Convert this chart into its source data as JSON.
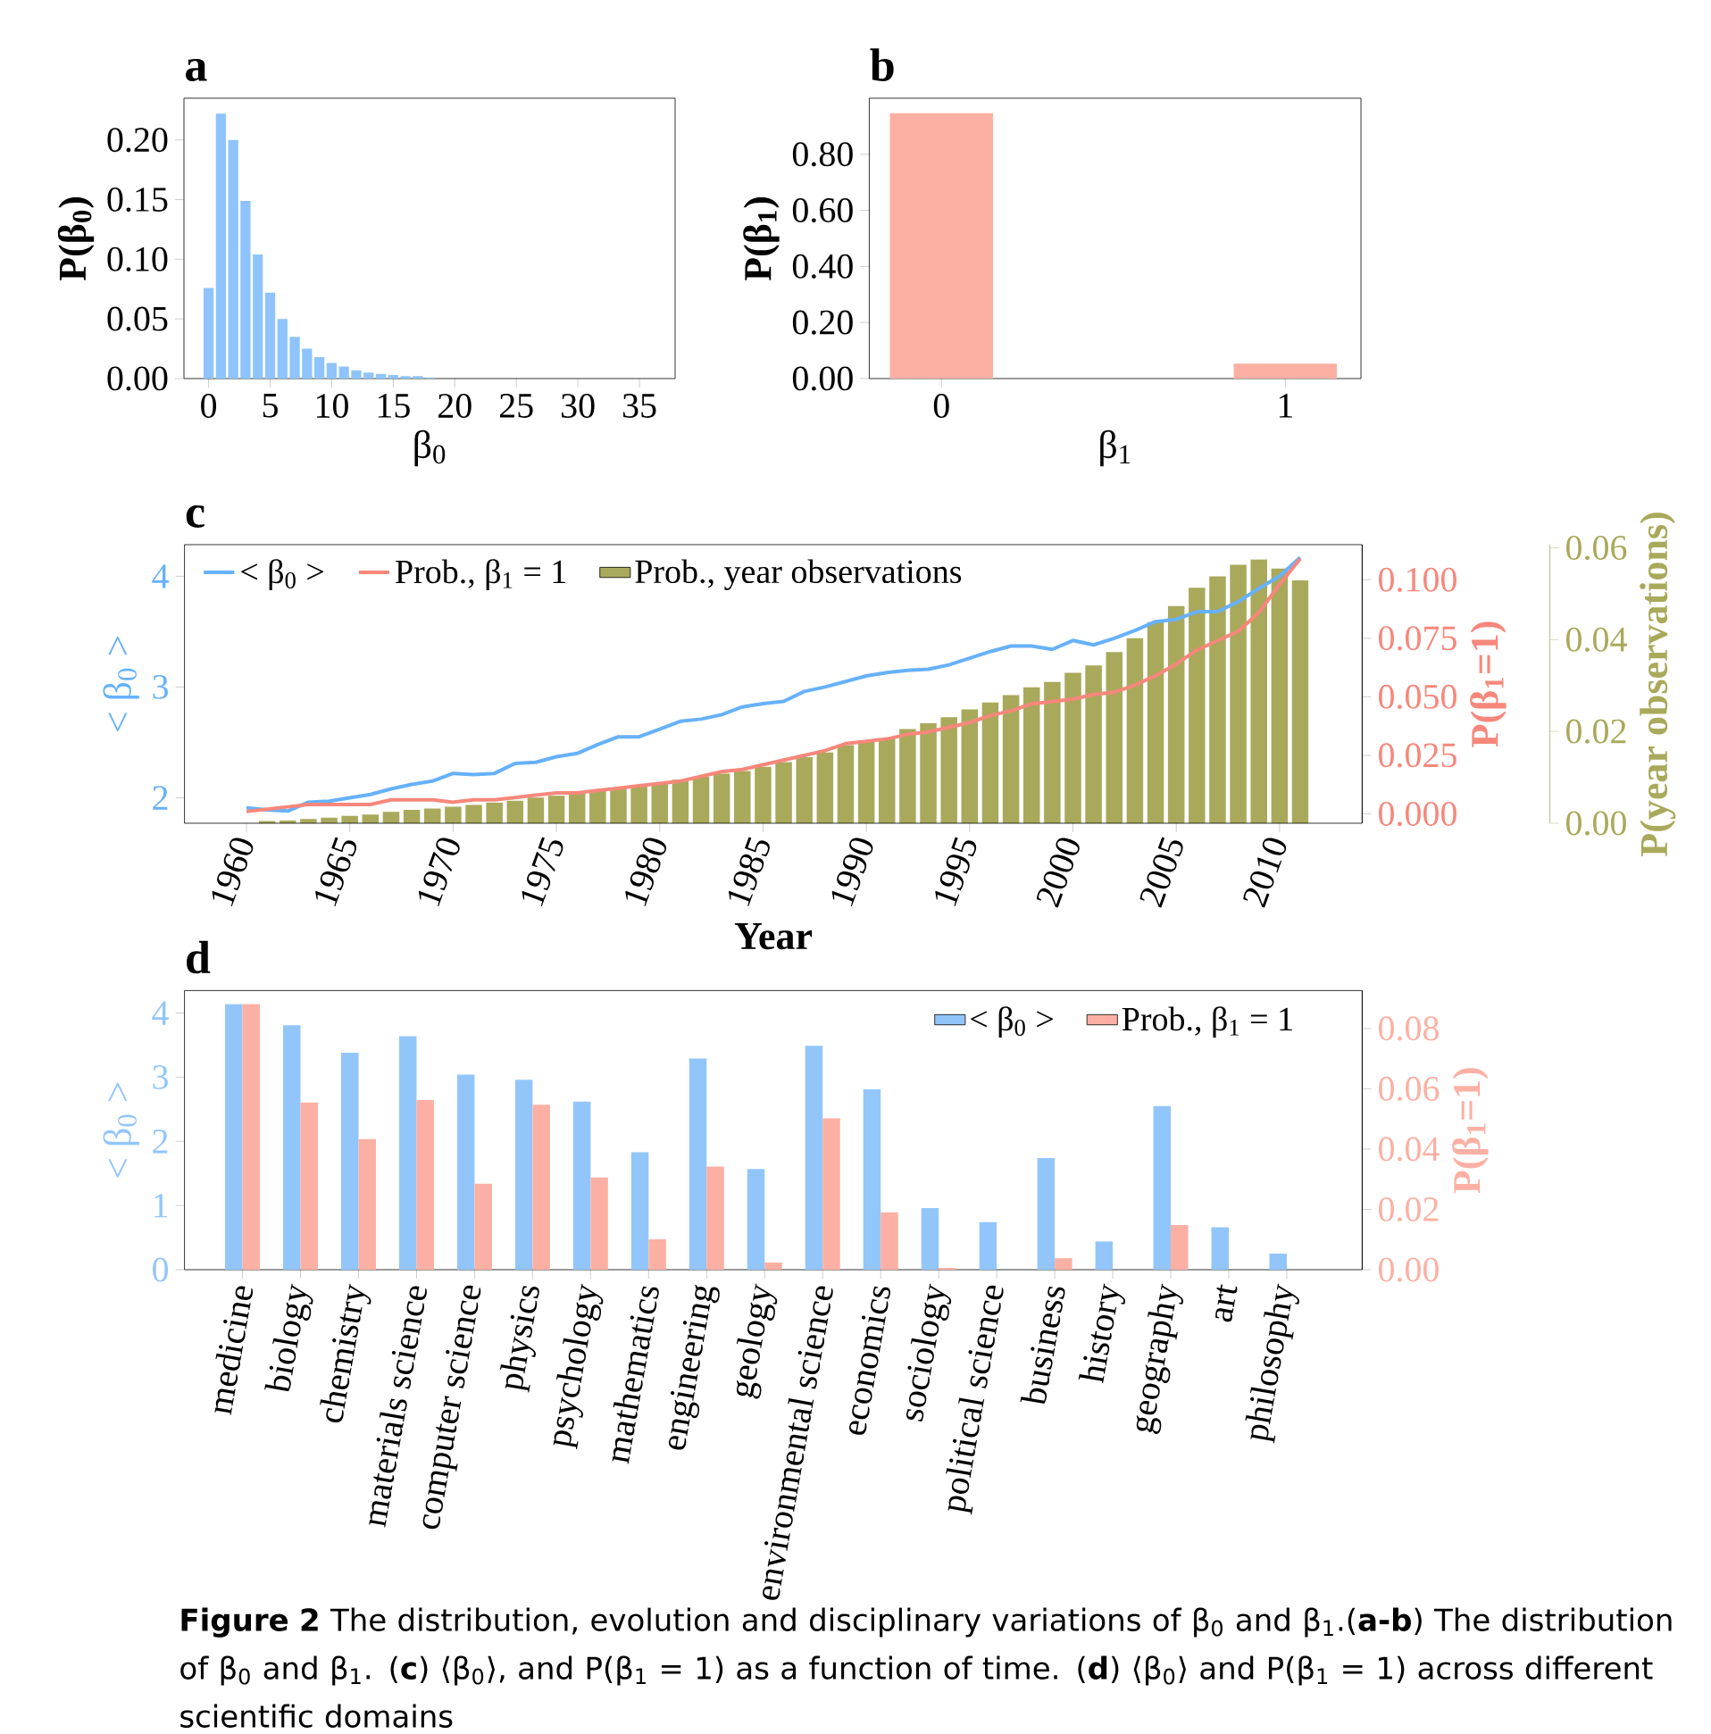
{
  "chart_data": [
    {
      "type": "bar",
      "title": "a",
      "xlabel": "β$_{0}$",
      "ylabel": "P(β$_{0}$)",
      "color": "#8ec4fb",
      "x": [
        0,
        1,
        2,
        3,
        4,
        5,
        6,
        7,
        8,
        9,
        10,
        11,
        12,
        13,
        14,
        15,
        16,
        17,
        18
      ],
      "values": [
        0.076,
        0.222,
        0.2,
        0.149,
        0.104,
        0.072,
        0.05,
        0.035,
        0.025,
        0.018,
        0.013,
        0.01,
        0.007,
        0.005,
        0.004,
        0.003,
        0.002,
        0.002,
        0.001
      ],
      "xlim": [
        -2,
        37.9
      ],
      "ylim": [
        0,
        0.235
      ],
      "xticks": [
        0,
        5,
        10,
        15,
        20,
        25,
        30,
        35
      ],
      "yticks": [
        {
          "value": 0,
          "label": "0.00"
        },
        {
          "value": 0.05,
          "label": "0.05"
        },
        {
          "value": 0.1,
          "label": "0.10"
        },
        {
          "value": 0.15,
          "label": "0.15"
        },
        {
          "value": 0.2,
          "label": "0.20"
        }
      ]
    },
    {
      "type": "bar",
      "title": "b",
      "xlabel": "β$_{1}$",
      "ylabel": "P(β$_{1}$)",
      "color": "#fcb0a3",
      "x": [
        0,
        1
      ],
      "values": [
        0.947,
        0.053
      ],
      "xlim": [
        -0.21,
        1.22
      ],
      "ylim": [
        0,
        1.0
      ],
      "xticks": [
        0,
        1
      ],
      "yticks": [
        {
          "value": 0,
          "label": "0.00"
        },
        {
          "value": 0.2,
          "label": "0.20"
        },
        {
          "value": 0.4,
          "label": "0.40"
        },
        {
          "value": 0.6,
          "label": "0.60"
        },
        {
          "value": 0.8,
          "label": "0.80"
        }
      ]
    },
    {
      "type": "line",
      "title": "c",
      "xlabel": "Year",
      "ylabel": "< β$_{0}$ >",
      "y2label": "P(β$_{1}$=1)",
      "y3label": "P(year observations)",
      "legend": "top",
      "x": [
        1960,
        1961,
        1962,
        1963,
        1964,
        1965,
        1966,
        1967,
        1968,
        1969,
        1970,
        1971,
        1972,
        1973,
        1974,
        1975,
        1976,
        1977,
        1978,
        1979,
        1980,
        1981,
        1982,
        1983,
        1984,
        1985,
        1986,
        1987,
        1988,
        1989,
        1990,
        1991,
        1992,
        1993,
        1994,
        1995,
        1996,
        1997,
        1998,
        1999,
        2000,
        2001,
        2002,
        2003,
        2004,
        2005,
        2006,
        2007,
        2008,
        2009,
        2010,
        2011
      ],
      "xlim": [
        1957,
        2014
      ],
      "xticks": [
        1960,
        1965,
        1970,
        1975,
        1980,
        1985,
        1990,
        1995,
        2000,
        2005,
        2010
      ],
      "ylim": [
        1.77,
        4.285
      ],
      "yticks": [
        2,
        3,
        4
      ],
      "y2lim": [
        -0.004,
        0.115
      ],
      "y2ticks": [
        {
          "value": 0,
          "label": "0.000"
        },
        {
          "value": 0.025,
          "label": "0.025"
        },
        {
          "value": 0.05,
          "label": "0.050"
        },
        {
          "value": 0.075,
          "label": "0.075"
        },
        {
          "value": 0.1,
          "label": "0.100"
        }
      ],
      "y3lim": [
        0,
        0.0607
      ],
      "y3ticks": [
        {
          "value": 0,
          "label": "0.00"
        },
        {
          "value": 0.02,
          "label": "0.02"
        },
        {
          "value": 0.04,
          "label": "0.04"
        },
        {
          "value": 0.06,
          "label": "0.06"
        }
      ],
      "series": [
        {
          "name": "< β$_{0}$ >",
          "color": "#66b1fb",
          "values": [
            1.91,
            1.89,
            1.88,
            1.96,
            1.97,
            2.0,
            2.03,
            2.08,
            2.12,
            2.15,
            2.22,
            2.21,
            2.22,
            2.31,
            2.32,
            2.37,
            2.4,
            2.48,
            2.55,
            2.55,
            2.62,
            2.69,
            2.71,
            2.75,
            2.82,
            2.85,
            2.87,
            2.96,
            3.0,
            3.05,
            3.1,
            3.13,
            3.15,
            3.16,
            3.2,
            3.26,
            3.32,
            3.37,
            3.37,
            3.34,
            3.42,
            3.38,
            3.44,
            3.51,
            3.59,
            3.61,
            3.68,
            3.68,
            3.77,
            3.89,
            4.0,
            4.17
          ]
        },
        {
          "name": "Prob., β$_{1}$ = 1",
          "color": "#f7877b",
          "axis": "y2",
          "values": [
            0.001,
            0.002,
            0.003,
            0.004,
            0.004,
            0.004,
            0.004,
            0.006,
            0.006,
            0.006,
            0.005,
            0.006,
            0.006,
            0.007,
            0.008,
            0.009,
            0.009,
            0.01,
            0.011,
            0.012,
            0.013,
            0.014,
            0.016,
            0.018,
            0.019,
            0.021,
            0.023,
            0.025,
            0.027,
            0.03,
            0.031,
            0.032,
            0.034,
            0.035,
            0.037,
            0.039,
            0.042,
            0.044,
            0.047,
            0.048,
            0.049,
            0.051,
            0.052,
            0.055,
            0.059,
            0.064,
            0.07,
            0.074,
            0.078,
            0.086,
            0.098,
            0.109
          ]
        },
        {
          "name": "Prob., year observations",
          "type": "bar",
          "color": "#a9a95b",
          "axis": "y3",
          "values": [
            null,
            0.0005,
            0.0006,
            0.0009,
            0.0012,
            0.0016,
            0.0019,
            0.0025,
            0.0029,
            0.0032,
            0.0036,
            0.004,
            0.0045,
            0.0049,
            0.0056,
            0.006,
            0.0065,
            0.0071,
            0.0076,
            0.0082,
            0.0088,
            0.0095,
            0.0101,
            0.0108,
            0.0114,
            0.0123,
            0.0133,
            0.0144,
            0.0154,
            0.017,
            0.0179,
            0.0185,
            0.0205,
            0.0218,
            0.0231,
            0.0248,
            0.0263,
            0.0279,
            0.0296,
            0.0308,
            0.0328,
            0.0344,
            0.0373,
            0.0403,
            0.0438,
            0.0473,
            0.0513,
            0.0538,
            0.0563,
            0.0575,
            0.0555,
            0.0529
          ]
        }
      ]
    },
    {
      "type": "bar",
      "title": "d",
      "ylabel": "< β$_{0}$ >",
      "y2label": "P(β$_{1}$=1)",
      "legend": "top right",
      "categories": [
        "medicine",
        "biology",
        "chemistry",
        "materials science",
        "computer science",
        "physics",
        "psychology",
        "mathematics",
        "engineering",
        "geology",
        "environmental science",
        "economics",
        "sociology",
        "political science",
        "business",
        "history",
        "geography",
        "art",
        "philosophy"
      ],
      "ylim": [
        0,
        4.35
      ],
      "yticks": [
        0,
        1,
        2,
        3,
        4
      ],
      "y2lim": [
        0,
        0.0926
      ],
      "y2ticks": [
        {
          "value": 0,
          "label": "0.00"
        },
        {
          "value": 0.02,
          "label": "0.02"
        },
        {
          "value": 0.04,
          "label": "0.04"
        },
        {
          "value": 0.06,
          "label": "0.06"
        },
        {
          "value": 0.08,
          "label": "0.08"
        }
      ],
      "series": [
        {
          "name": "< β$_{0}$ >",
          "color": "#92c6fb",
          "values": [
            4.14,
            3.81,
            3.38,
            3.64,
            3.04,
            2.96,
            2.62,
            1.83,
            3.29,
            1.57,
            3.49,
            2.81,
            0.96,
            0.74,
            1.74,
            0.44,
            2.55,
            0.66,
            0.25
          ]
        },
        {
          "name": "Prob., β$_{1}$ = 1",
          "color": "#fcb0a3",
          "axis": "y2",
          "values": [
            0.0881,
            0.0555,
            0.0433,
            0.0563,
            0.0285,
            0.0547,
            0.0306,
            0.0101,
            0.0342,
            0.0024,
            0.0502,
            0.019,
            0.0006,
            0,
            0.0038,
            0,
            0.0148,
            0,
            0
          ]
        }
      ],
      "annotations": [
        "**Figure 2** The distribution, evolution and disciplinary variations of β$_{0}$ and β$_{1}$.(**a-b**) The distribution of β$_{0}$ and β$_{1}$. (**c**) ⟨β$_{0}$⟩, and P(β$_{1}$ = 1) as a function of time. (**d**) ⟨β$_{0}$⟩ and P(β$_{1}$ = 1) across different scientific domains"
      ]
    }
  ]
}
